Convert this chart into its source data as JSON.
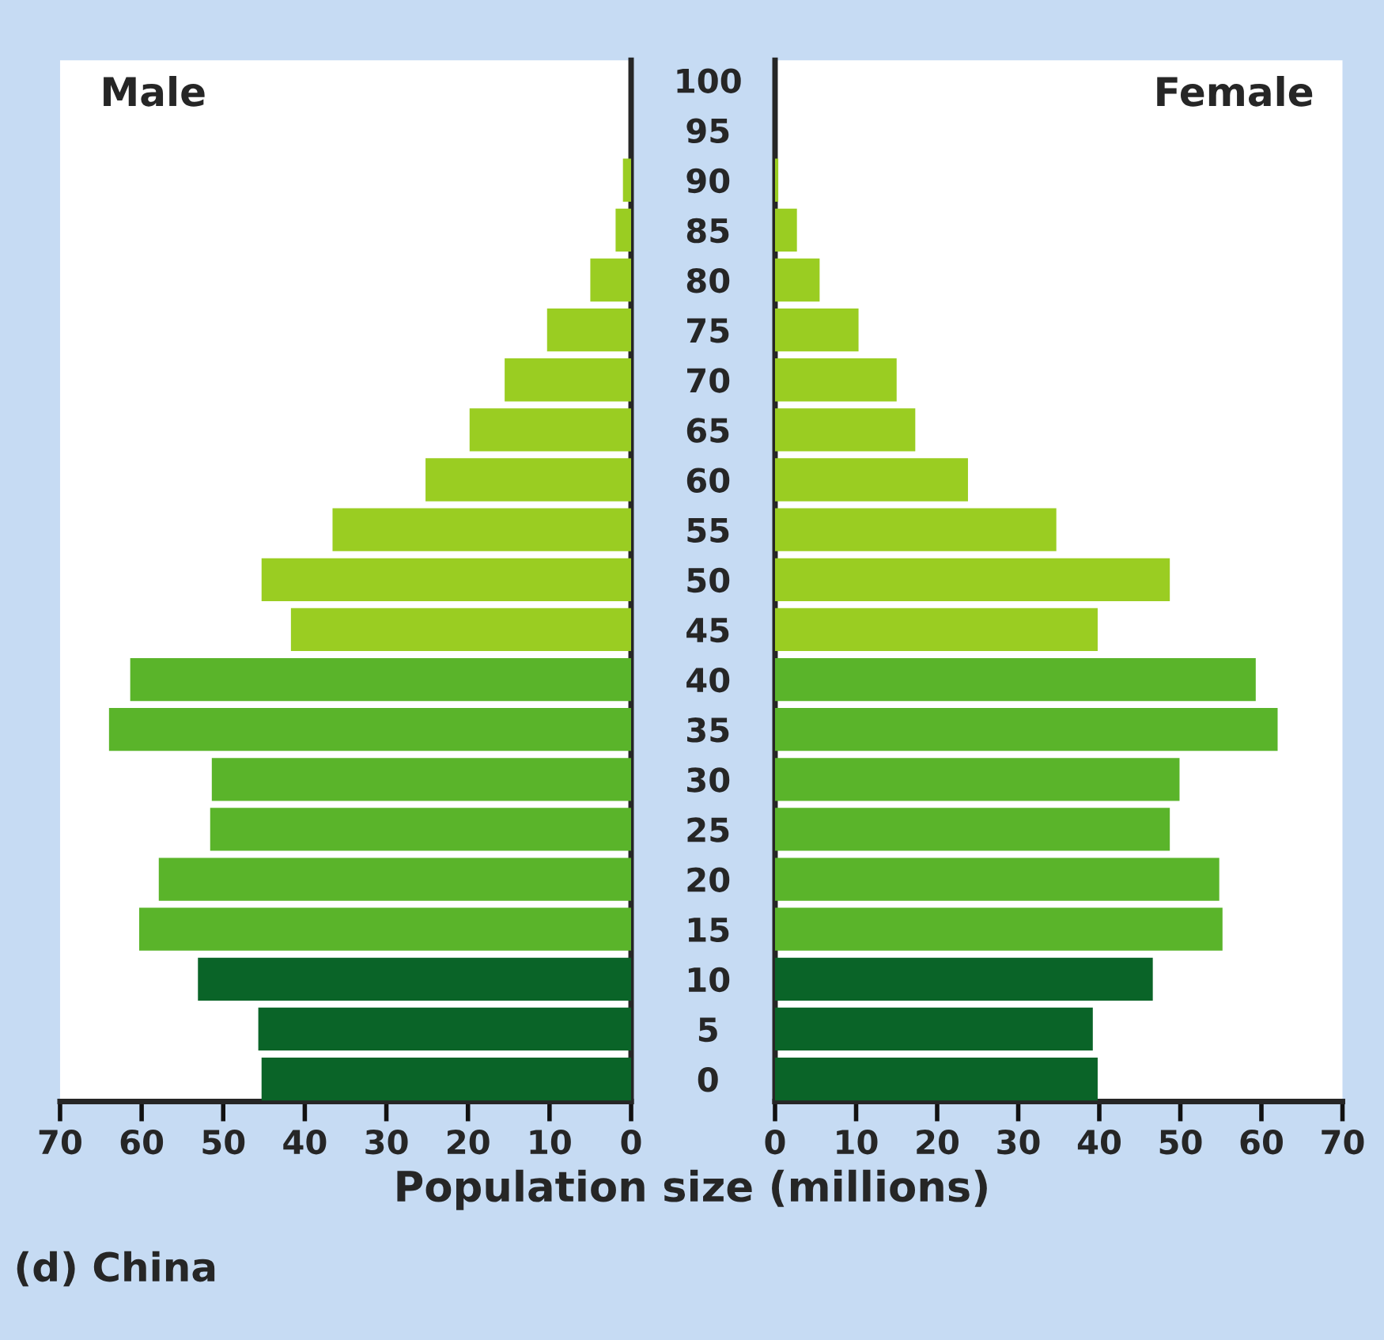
{
  "chart_data": [
    {
      "type": "bar",
      "orientation": "horizontal",
      "title": "Male",
      "xlabel": "Population size (millions)",
      "annotations": [
        "(d) China"
      ],
      "categories": [
        "100",
        "95",
        "90",
        "85",
        "80",
        "75",
        "70",
        "65",
        "60",
        "55",
        "50",
        "45",
        "40",
        "35",
        "30",
        "25",
        "20",
        "15",
        "10",
        "5",
        "0"
      ],
      "values": [
        null,
        null,
        1.0,
        1.9,
        5.0,
        10.3,
        15.5,
        19.8,
        25.2,
        36.6,
        45.3,
        41.7,
        61.4,
        64.0,
        51.4,
        51.6,
        57.9,
        60.3,
        53.1,
        45.7,
        45.3
      ],
      "colors": [
        "#9acd22",
        "#9acd22",
        "#9acd22",
        "#9acd22",
        "#9acd22",
        "#9acd22",
        "#9acd22",
        "#9acd22",
        "#9acd22",
        "#9acd22",
        "#9acd22",
        "#9acd22",
        "#5ab42a",
        "#5ab42a",
        "#5ab42a",
        "#5ab42a",
        "#5ab42a",
        "#5ab42a",
        "#0a6428",
        "#0a6428",
        "#0a6428"
      ],
      "xlim": [
        70,
        0
      ],
      "xticks": [
        70,
        60,
        50,
        40,
        30,
        20,
        10,
        0
      ],
      "grid": false
    },
    {
      "type": "bar",
      "orientation": "horizontal",
      "title": "Female",
      "tick_labels": "x",
      "categories": [
        "100",
        "95",
        "90",
        "85",
        "80",
        "75",
        "70",
        "65",
        "60",
        "55",
        "50",
        "45",
        "40",
        "35",
        "30",
        "25",
        "20",
        "15",
        "10",
        "5",
        "0"
      ],
      "values": [
        null,
        null,
        0.4,
        2.7,
        5.5,
        10.3,
        15.0,
        17.3,
        23.8,
        34.7,
        48.7,
        39.8,
        59.3,
        62.0,
        49.9,
        48.7,
        54.8,
        55.2,
        46.6,
        39.2,
        39.8
      ],
      "colors": [
        "#9acd22",
        "#9acd22",
        "#9acd22",
        "#9acd22",
        "#9acd22",
        "#9acd22",
        "#9acd22",
        "#9acd22",
        "#9acd22",
        "#9acd22",
        "#9acd22",
        "#9acd22",
        "#5ab42a",
        "#5ab42a",
        "#5ab42a",
        "#5ab42a",
        "#5ab42a",
        "#5ab42a",
        "#0a6428",
        "#0a6428",
        "#0a6428"
      ],
      "xlim": [
        0,
        70
      ],
      "xticks": [
        0,
        10,
        20,
        30,
        40,
        50,
        60,
        70
      ],
      "grid": false
    }
  ]
}
